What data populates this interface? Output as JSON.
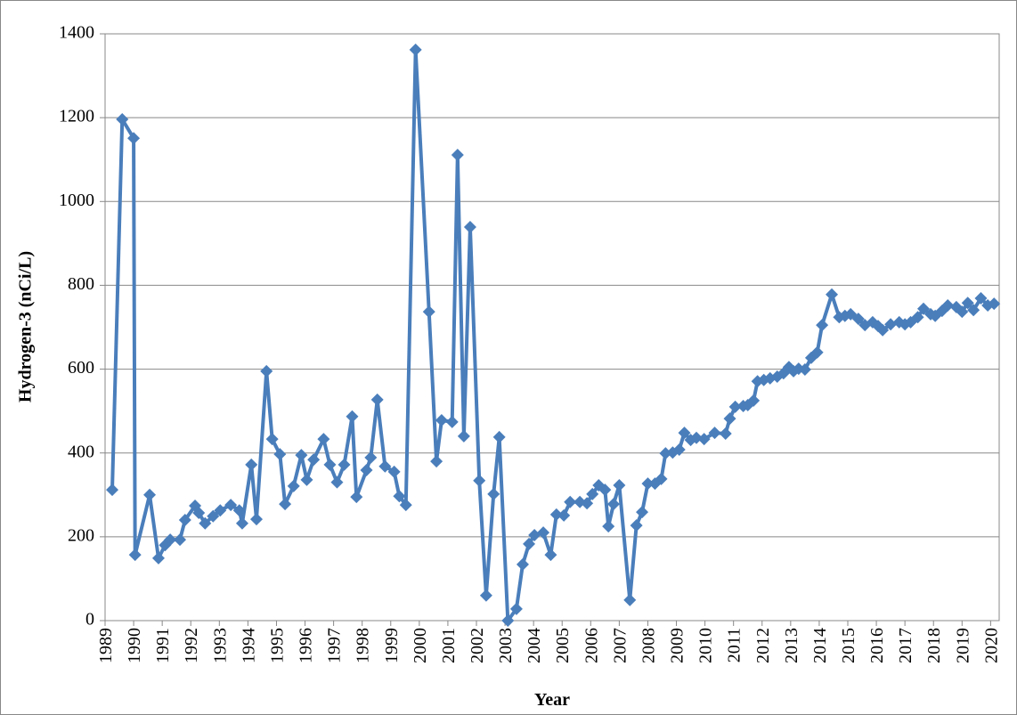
{
  "chart_data": {
    "type": "line",
    "y_label": "Hydrogen-3 (nCi/L)",
    "x_label": "Year",
    "color": "#4a7ebb",
    "grid": true,
    "xlim": [
      1989,
      2020.3
    ],
    "xticks": [
      1989,
      1990,
      1991,
      1992,
      1993,
      1994,
      1995,
      1996,
      1997,
      1998,
      1999,
      2000,
      2001,
      2002,
      2003,
      2004,
      2005,
      2006,
      2007,
      2008,
      2009,
      2010,
      2011,
      2012,
      2013,
      2014,
      2015,
      2016,
      2017,
      2018,
      2019,
      2020
    ],
    "ylim": [
      0,
      1400
    ],
    "yticks": [
      0,
      200,
      400,
      600,
      800,
      1000,
      1200,
      1400
    ],
    "x": [
      1989.25,
      1989.6,
      1990.0,
      1990.05,
      1990.56,
      1990.87,
      1991.1,
      1991.28,
      1991.62,
      1991.8,
      1992.15,
      1992.28,
      1992.5,
      1992.78,
      1993.03,
      1993.4,
      1993.7,
      1993.8,
      1994.12,
      1994.3,
      1994.65,
      1994.85,
      1995.12,
      1995.3,
      1995.6,
      1995.87,
      1996.06,
      1996.3,
      1996.65,
      1996.87,
      1997.12,
      1997.37,
      1997.65,
      1997.8,
      1998.15,
      1998.3,
      1998.53,
      1998.8,
      1999.12,
      1999.3,
      1999.53,
      1999.87,
      2000.34,
      2000.6,
      2000.78,
      2001.15,
      2001.34,
      2001.56,
      2001.78,
      2002.1,
      2002.34,
      2002.6,
      2002.8,
      2003.1,
      2003.4,
      2003.62,
      2003.84,
      2004.03,
      2004.34,
      2004.6,
      2004.8,
      2005.06,
      2005.28,
      2005.62,
      2005.87,
      2006.06,
      2006.28,
      2006.5,
      2006.62,
      2006.8,
      2007.0,
      2007.37,
      2007.6,
      2007.8,
      2008.0,
      2008.25,
      2008.47,
      2008.62,
      2008.87,
      2009.1,
      2009.28,
      2009.5,
      2009.7,
      2009.97,
      2010.34,
      2010.72,
      2010.87,
      2011.06,
      2011.34,
      2011.5,
      2011.7,
      2011.84,
      2012.06,
      2012.28,
      2012.53,
      2012.75,
      2012.94,
      2013.1,
      2013.28,
      2013.5,
      2013.72,
      2013.93,
      2014.1,
      2014.44,
      2014.7,
      2014.9,
      2015.1,
      2015.37,
      2015.6,
      2015.87,
      2016.06,
      2016.22,
      2016.5,
      2016.8,
      2017.0,
      2017.2,
      2017.45,
      2017.65,
      2017.9,
      2018.06,
      2018.3,
      2018.5,
      2018.8,
      2019.0,
      2019.2,
      2019.4,
      2019.66,
      2019.9,
      2020.12
    ],
    "values": [
      312,
      1196,
      1151,
      157,
      300,
      149,
      180,
      193,
      193,
      240,
      274,
      257,
      232,
      249,
      263,
      276,
      263,
      232,
      372,
      242,
      595,
      433,
      397,
      278,
      321,
      395,
      336,
      384,
      433,
      372,
      330,
      372,
      487,
      295,
      359,
      389,
      527,
      368,
      355,
      297,
      276,
      1362,
      737,
      380,
      478,
      474,
      1111,
      440,
      939,
      334,
      60,
      302,
      438,
      0,
      28,
      134,
      183,
      204,
      210,
      157,
      253,
      251,
      283,
      283,
      280,
      302,
      323,
      312,
      225,
      278,
      323,
      49,
      227,
      259,
      327,
      327,
      338,
      399,
      401,
      408,
      448,
      431,
      436,
      433,
      448,
      446,
      482,
      510,
      512,
      514,
      525,
      571,
      574,
      578,
      582,
      590,
      605,
      595,
      601,
      599,
      627,
      640,
      705,
      778,
      724,
      727,
      731,
      720,
      705,
      712,
      703,
      693,
      707,
      712,
      707,
      712,
      724,
      744,
      731,
      727,
      739,
      752,
      748,
      737,
      758,
      741,
      769,
      752,
      756
    ]
  }
}
